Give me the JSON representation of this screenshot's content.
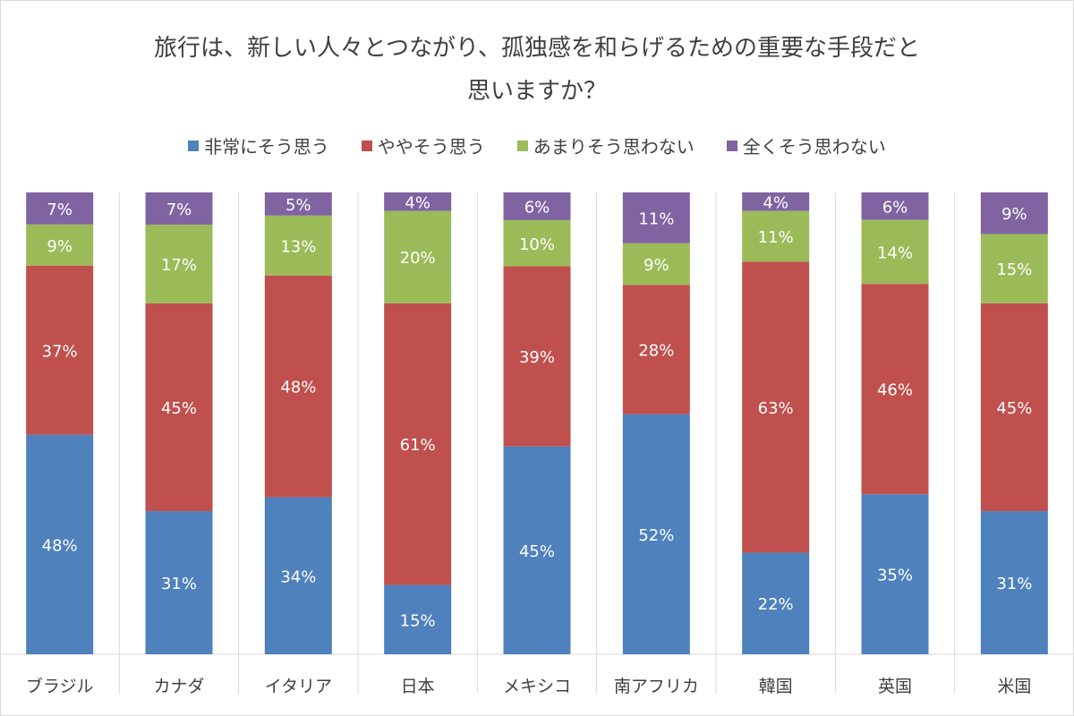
{
  "chart_data": {
    "type": "bar",
    "stacked": true,
    "normalized": true,
    "title": "旅行は、新しい人々とつながり、孤独感を和らげるための重要な手段だと思いますか？",
    "title_lines": [
      "旅行は、新しい人々とつながり、孤独感を和らげるための重要な手段だと",
      "思いますか？"
    ],
    "categories": [
      "ブラジル",
      "カナダ",
      "イタリア",
      "日本",
      "メキシコ",
      "南アフリカ",
      "韓国",
      "英国",
      "米国"
    ],
    "series": [
      {
        "name": "非常にそう思う",
        "color": "#4f81bd",
        "values": [
          48,
          31,
          34,
          15,
          45,
          52,
          22,
          35,
          31
        ]
      },
      {
        "name": "ややそう思う",
        "color": "#c0504d",
        "values": [
          37,
          45,
          48,
          61,
          39,
          28,
          63,
          46,
          45
        ]
      },
      {
        "name": "あまりそう思わない",
        "color": "#9bbb59",
        "values": [
          9,
          17,
          13,
          20,
          10,
          9,
          11,
          14,
          15
        ]
      },
      {
        "name": "全くそう思わない",
        "color": "#8064a2",
        "values": [
          7,
          7,
          5,
          4,
          6,
          11,
          4,
          6,
          9
        ]
      }
    ],
    "value_suffix": "%",
    "legend_position": "top",
    "grid": false
  }
}
